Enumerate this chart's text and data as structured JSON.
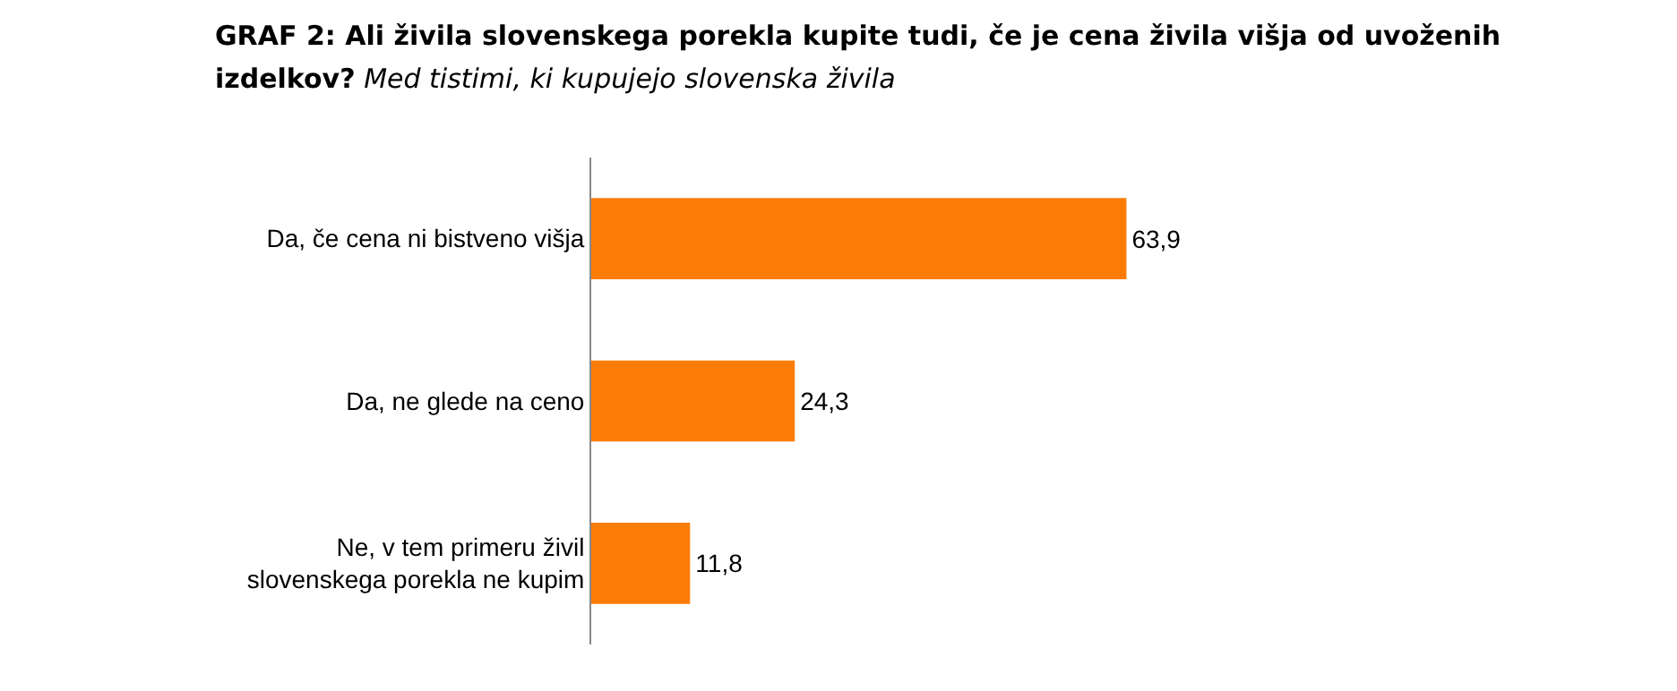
{
  "chart_data": {
    "type": "bar",
    "orientation": "horizontal",
    "title": "GRAF 2: Ali živila slovenskega porekla kupite tudi, če je cena živila višja od uvoženih izdelkov?",
    "subtitle": "Med tistimi, ki kupujejo slovenska živila",
    "categories": [
      "Da, če cena ni bistveno višja",
      "Da, ne glede na ceno",
      "Ne, v tem primeru živil slovenskega porekla ne kupim"
    ],
    "values": [
      63.9,
      24.3,
      11.8
    ],
    "value_labels": [
      "63,9",
      "24,3",
      "11,8"
    ],
    "color": "#fb7d07",
    "grid": false,
    "tick_labels": "y"
  }
}
